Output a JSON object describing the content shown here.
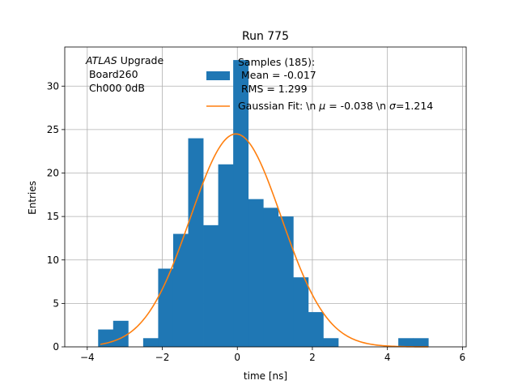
{
  "chart_data": {
    "type": "bar",
    "title": "Run 775",
    "xlabel": "time [ns]",
    "ylabel": "Entries",
    "xlim": [
      -4.6,
      6.1
    ],
    "ylim": [
      0,
      34.5
    ],
    "xticks": [
      -4,
      -2,
      0,
      2,
      4,
      6
    ],
    "xtick_labels": [
      "−4",
      "−2",
      "0",
      "2",
      "4",
      "6"
    ],
    "yticks": [
      0,
      5,
      10,
      15,
      20,
      25,
      30
    ],
    "ytick_labels": [
      "0",
      "5",
      "10",
      "15",
      "20",
      "25",
      "30"
    ],
    "grid": true,
    "legend_position": "top-right",
    "bins": {
      "edges": [
        -3.71,
        -3.31,
        -2.91,
        -2.51,
        -2.11,
        -1.71,
        -1.31,
        -0.91,
        -0.51,
        -0.11,
        0.29,
        0.69,
        1.09,
        1.49,
        1.89,
        2.29,
        2.69,
        3.09,
        3.49,
        3.89,
        4.29,
        4.69,
        5.09
      ],
      "counts": [
        2,
        3,
        0,
        1,
        9,
        13,
        24,
        14,
        21,
        33,
        17,
        16,
        15,
        8,
        4,
        1,
        0,
        0,
        0,
        0,
        1,
        1
      ],
      "color": "#1f77b4"
    },
    "series": [
      {
        "name": "Gaussian Fit: \\n $\\mu$ = -0.038 \\n $\\sigma$=1.214",
        "type": "line",
        "mu": -0.038,
        "sigma": 1.214,
        "amplitude": 24.5,
        "x_range": [
          -3.65,
          5.09
        ],
        "color": "#ff7f0e"
      }
    ],
    "legend": {
      "hist_lines": [
        "Samples (185):",
        " Mean = -0.017",
        " RMS = 1.299"
      ],
      "fit_prefix": "Gaussian Fit: \\n ",
      "fit_mu_symbol": "μ",
      "fit_middle": " = -0.038 \\n ",
      "fit_sigma_symbol": "σ",
      "fit_suffix": "=1.214"
    },
    "annotation": {
      "italic": "ATLAS",
      "rest": " Upgrade",
      "line2": " Board260",
      "line3": " Ch000 0dB"
    }
  }
}
